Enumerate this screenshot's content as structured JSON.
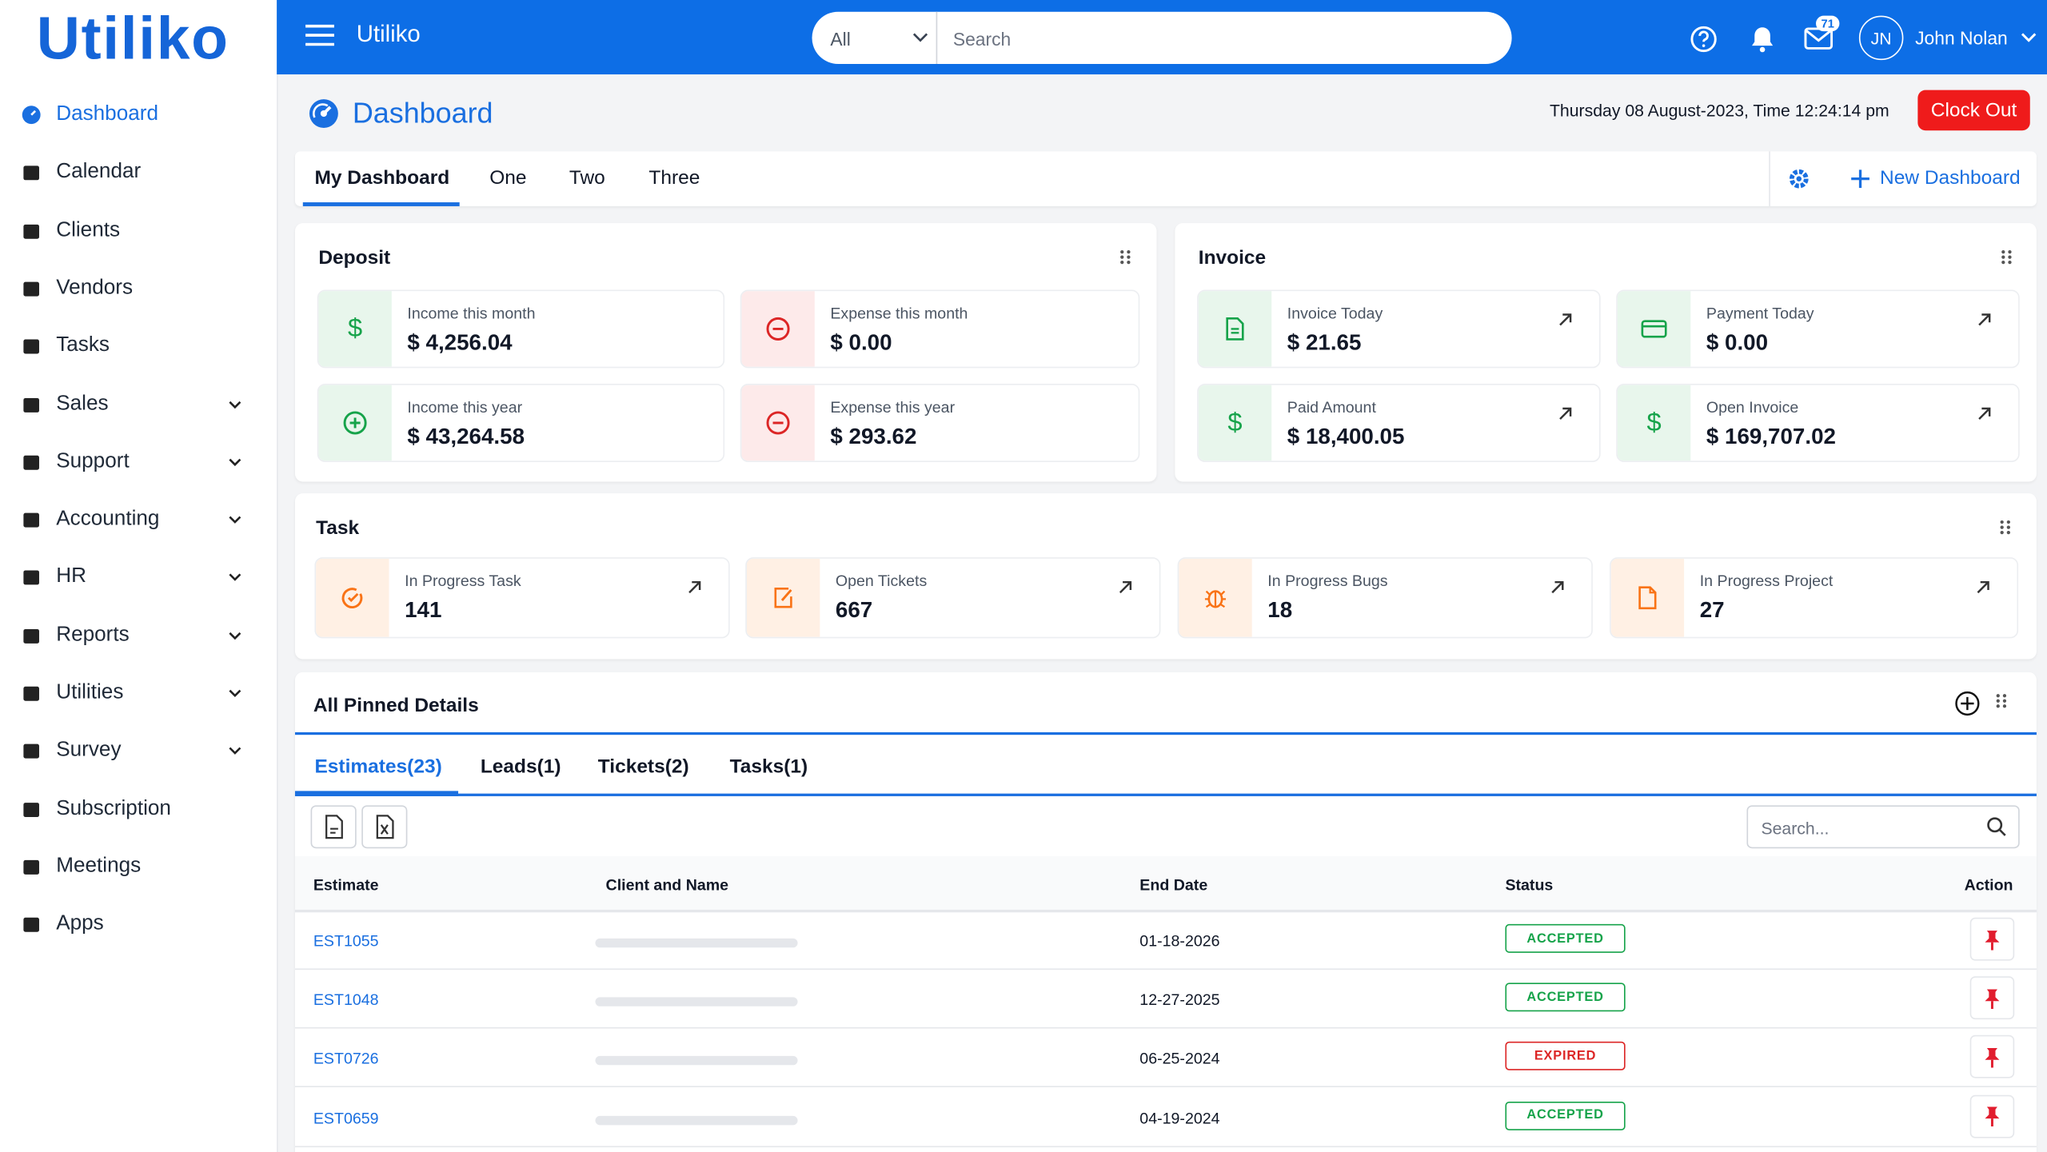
{
  "brand": "Utiliko",
  "sidebar": {
    "items": [
      {
        "label": "Dashboard",
        "expandable": false
      },
      {
        "label": "Calendar",
        "expandable": false
      },
      {
        "label": "Clients",
        "expandable": false
      },
      {
        "label": "Vendors",
        "expandable": false
      },
      {
        "label": "Tasks",
        "expandable": false
      },
      {
        "label": "Sales",
        "expandable": true
      },
      {
        "label": "Support",
        "expandable": true
      },
      {
        "label": "Accounting",
        "expandable": true
      },
      {
        "label": "HR",
        "expandable": true
      },
      {
        "label": "Reports",
        "expandable": true
      },
      {
        "label": "Utilities",
        "expandable": true
      },
      {
        "label": "Survey",
        "expandable": true
      },
      {
        "label": "Subscription",
        "expandable": false
      },
      {
        "label": "Meetings",
        "expandable": false
      },
      {
        "label": "Apps",
        "expandable": false
      }
    ],
    "active": 0
  },
  "topbar": {
    "app_name": "Utiliko",
    "search_scope": "All",
    "search_placeholder": "Search",
    "mail_badge": "71",
    "user_initials": "JN",
    "user_name": "John Nolan"
  },
  "header": {
    "title": "Dashboard",
    "datetime": "Thursday 08 August-2023, Time 12:24:14 pm",
    "clock_out": "Clock Out"
  },
  "tabs": {
    "items": [
      "My Dashboard",
      "One",
      "Two",
      "Three"
    ],
    "active": 0,
    "new_dashboard": "New Dashboard"
  },
  "deposit": {
    "title": "Deposit",
    "cards": [
      {
        "label": "Income this month",
        "value": "$ 4,256.04"
      },
      {
        "label": "Expense this month",
        "value": "$ 0.00"
      },
      {
        "label": "Income this year",
        "value": "$ 43,264.58"
      },
      {
        "label": "Expense this year",
        "value": "$ 293.62"
      }
    ]
  },
  "invoice": {
    "title": "Invoice",
    "cards": [
      {
        "label": "Invoice Today",
        "value": "$ 21.65"
      },
      {
        "label": "Payment Today",
        "value": "$ 0.00"
      },
      {
        "label": "Paid Amount",
        "value": "$ 18,400.05"
      },
      {
        "label": "Open Invoice",
        "value": "$ 169,707.02"
      }
    ]
  },
  "task": {
    "title": "Task",
    "cards": [
      {
        "label": "In Progress Task",
        "value": 141
      },
      {
        "label": "Open Tickets",
        "value": 667
      },
      {
        "label": "In Progress Bugs",
        "value": 18
      },
      {
        "label": "In Progress Project",
        "value": 27
      }
    ]
  },
  "pinned": {
    "title": "All Pinned Details",
    "tabs": [
      "Estimates(23)",
      "Leads(1)",
      "Tickets(2)",
      "Tasks(1)"
    ],
    "active_tab": 0,
    "search_placeholder": "Search...",
    "columns": [
      "Estimate",
      "Client and Name",
      "End Date",
      "Status",
      "Action"
    ],
    "rows": [
      [
        "EST1055",
        "01-18-2026",
        "ACCEPTED"
      ],
      [
        "EST1048",
        "12-27-2025",
        "ACCEPTED"
      ],
      [
        "EST0726",
        "06-25-2024",
        "EXPIRED"
      ],
      [
        "EST0659",
        "04-19-2024",
        "ACCEPTED"
      ]
    ]
  }
}
